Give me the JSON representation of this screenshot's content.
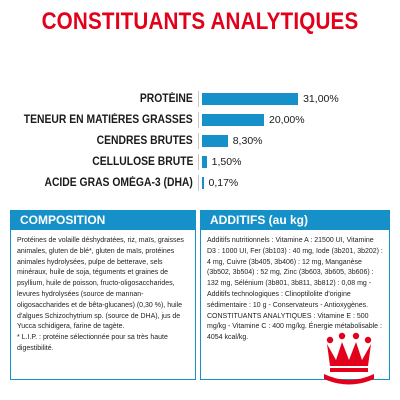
{
  "title": "CONSTITUANTS ANALYTIQUES",
  "brand_color": "#e2001a",
  "accent_color": "#1690c8",
  "constituents": [
    {
      "label": "PROTÉINE",
      "value": "31,00%",
      "percent": 31.0
    },
    {
      "label": "TENEUR EN MATIÈRES GRASSES",
      "value": "20,00%",
      "percent": 20.0
    },
    {
      "label": "CENDRES BRUTES",
      "value": "8,30%",
      "percent": 8.3
    },
    {
      "label": "CELLULOSE BRUTE",
      "value": "1,50%",
      "percent": 1.5
    },
    {
      "label": "ACIDE GRAS OMÉGA-3 (DHA)",
      "value": "0,17%",
      "percent": 0.17
    }
  ],
  "composition": {
    "heading": "COMPOSITION",
    "text": "Protéines de volaille déshydratées, riz, maïs, graisses animales, gluten de blé*, gluten de maïs, protéines animales hydrolysées, pulpe de betterave, sels minéraux, huile de soja, téguments et graines de psyllium, huile de poisson, fructo-oligosaccharides, levures hydrolysées (source de mannan-oligosaccharides et de bêta-glucanes) (0,30 %), huile d'algues Schizochytrium sp. (source de DHA), jus de Yucca schidigera, farine de tagète.",
    "footnote": "* L.I.P. : protéine sélectionnée pour sa très haute digestibilité."
  },
  "additifs": {
    "heading": "ADDITIFS (au kg)",
    "text": "Additifs nutritionnels : Vitamine A : 21500 UI, Vitamine D3 : 1000 UI, Fer (3b103) : 40 mg, Iode (3b201, 3b202) : 4 mg, Cuivre (3b405, 3b406) : 12 mg, Manganèse (3b502, 3b504) : 52 mg, Zinc (3b603, 3b605, 3b606) : 132 mg, Sélénium (3b801, 3b811, 3b812) : 0,08 mg - Additifs technologiques : Clinoptilolite d'origine sédimentaire : 10 g - Conservateurs - Antioxygènes. CONSTITUANTS ANALYTIQUES : Vitamine E : 500 mg/kg - Vitamine C : 400 mg/kg. Énergie métabolisable : 4054 kcal/kg."
  },
  "logo_icon": "royal-canin-crown-logo"
}
